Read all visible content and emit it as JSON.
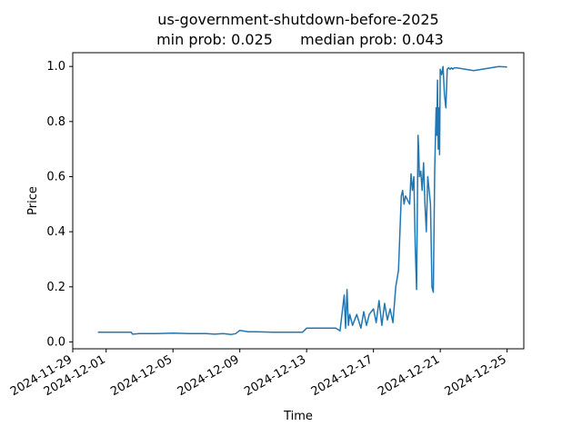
{
  "chart_data": {
    "type": "line",
    "title": "us-government-shutdown-before-2025",
    "subtitle_min": "min prob: 0.025",
    "subtitle_median": "median prob: 0.043",
    "xlabel": "Time",
    "ylabel": "Price",
    "xlim": [
      "2024-11-29",
      "2024-12-26"
    ],
    "ylim": [
      -0.025,
      1.05
    ],
    "x_ticks": [
      "2024-11-29",
      "2024-12-01",
      "2024-12-05",
      "2024-12-09",
      "2024-12-13",
      "2024-12-17",
      "2024-12-21",
      "2024-12-25"
    ],
    "y_ticks": [
      "0.0",
      "0.2",
      "0.4",
      "0.6",
      "0.8",
      "1.0"
    ],
    "grid": false,
    "series_color": "#1f77b4",
    "series": [
      {
        "x": [
          "2024-11-30 12:00",
          "2024-12-02 00:00",
          "2024-12-02 12:00",
          "2024-12-02 14:00",
          "2024-12-03 00:00",
          "2024-12-04 00:00",
          "2024-12-05 00:00",
          "2024-12-06 00:00",
          "2024-12-07 00:00",
          "2024-12-07 12:00",
          "2024-12-08 00:00",
          "2024-12-08 12:00",
          "2024-12-08 18:00",
          "2024-12-09 00:00",
          "2024-12-09 12:00",
          "2024-12-10 00:00",
          "2024-12-11 00:00",
          "2024-12-12 00:00",
          "2024-12-12 18:00",
          "2024-12-13 00:00",
          "2024-12-14 00:00",
          "2024-12-14 18:00",
          "2024-12-15 00:00",
          "2024-12-15 06:00",
          "2024-12-15 08:00",
          "2024-12-15 10:00",
          "2024-12-15 12:00",
          "2024-12-15 14:00",
          "2024-12-15 18:00",
          "2024-12-16 00:00",
          "2024-12-16 06:00",
          "2024-12-16 10:00",
          "2024-12-16 14:00",
          "2024-12-16 18:00",
          "2024-12-17 00:00",
          "2024-12-17 04:00",
          "2024-12-17 08:00",
          "2024-12-17 12:00",
          "2024-12-17 16:00",
          "2024-12-17 20:00",
          "2024-12-18 00:00",
          "2024-12-18 04:00",
          "2024-12-18 08:00",
          "2024-12-18 12:00",
          "2024-12-18 14:00",
          "2024-12-18 16:00",
          "2024-12-18 18:00",
          "2024-12-18 20:00",
          "2024-12-18 22:00",
          "2024-12-19 00:00",
          "2024-12-19 04:00",
          "2024-12-19 06:00",
          "2024-12-19 08:00",
          "2024-12-19 10:00",
          "2024-12-19 12:00",
          "2024-12-19 14:00",
          "2024-12-19 16:00",
          "2024-12-19 17:00",
          "2024-12-19 18:00",
          "2024-12-19 20:00",
          "2024-12-19 22:00",
          "2024-12-20 00:00",
          "2024-12-20 02:00",
          "2024-12-20 04:00",
          "2024-12-20 06:00",
          "2024-12-20 08:00",
          "2024-12-20 10:00",
          "2024-12-20 12:00",
          "2024-12-20 14:00",
          "2024-12-20 16:00",
          "2024-12-20 18:00",
          "2024-12-20 19:00",
          "2024-12-20 20:00",
          "2024-12-20 21:00",
          "2024-12-20 22:00",
          "2024-12-20 23:00",
          "2024-12-21 00:00",
          "2024-12-21 02:00",
          "2024-12-21 04:00",
          "2024-12-21 06:00",
          "2024-12-21 08:00",
          "2024-12-21 10:00",
          "2024-12-21 12:00",
          "2024-12-21 14:00",
          "2024-12-21 16:00",
          "2024-12-21 18:00",
          "2024-12-21 20:00",
          "2024-12-22 00:00",
          "2024-12-22 12:00",
          "2024-12-23 00:00",
          "2024-12-23 12:00",
          "2024-12-24 00:00",
          "2024-12-24 12:00",
          "2024-12-25 00:00"
        ],
        "y": [
          0.035,
          0.035,
          0.035,
          0.028,
          0.03,
          0.03,
          0.032,
          0.03,
          0.03,
          0.028,
          0.03,
          0.027,
          0.03,
          0.042,
          0.037,
          0.037,
          0.035,
          0.035,
          0.035,
          0.05,
          0.05,
          0.05,
          0.04,
          0.17,
          0.05,
          0.19,
          0.06,
          0.1,
          0.06,
          0.1,
          0.05,
          0.11,
          0.06,
          0.1,
          0.12,
          0.07,
          0.15,
          0.06,
          0.14,
          0.08,
          0.12,
          0.07,
          0.2,
          0.26,
          0.4,
          0.53,
          0.55,
          0.5,
          0.53,
          0.52,
          0.5,
          0.61,
          0.55,
          0.6,
          0.35,
          0.19,
          0.75,
          0.7,
          0.6,
          0.62,
          0.55,
          0.65,
          0.5,
          0.4,
          0.6,
          0.55,
          0.5,
          0.2,
          0.18,
          0.62,
          0.85,
          0.75,
          0.95,
          0.7,
          0.85,
          0.68,
          0.99,
          0.97,
          1.0,
          0.9,
          0.85,
          0.99,
          0.995,
          0.99,
          0.995,
          0.99,
          0.995,
          0.995,
          0.99,
          0.985,
          0.99,
          0.995,
          1.0,
          0.998
        ]
      }
    ]
  }
}
